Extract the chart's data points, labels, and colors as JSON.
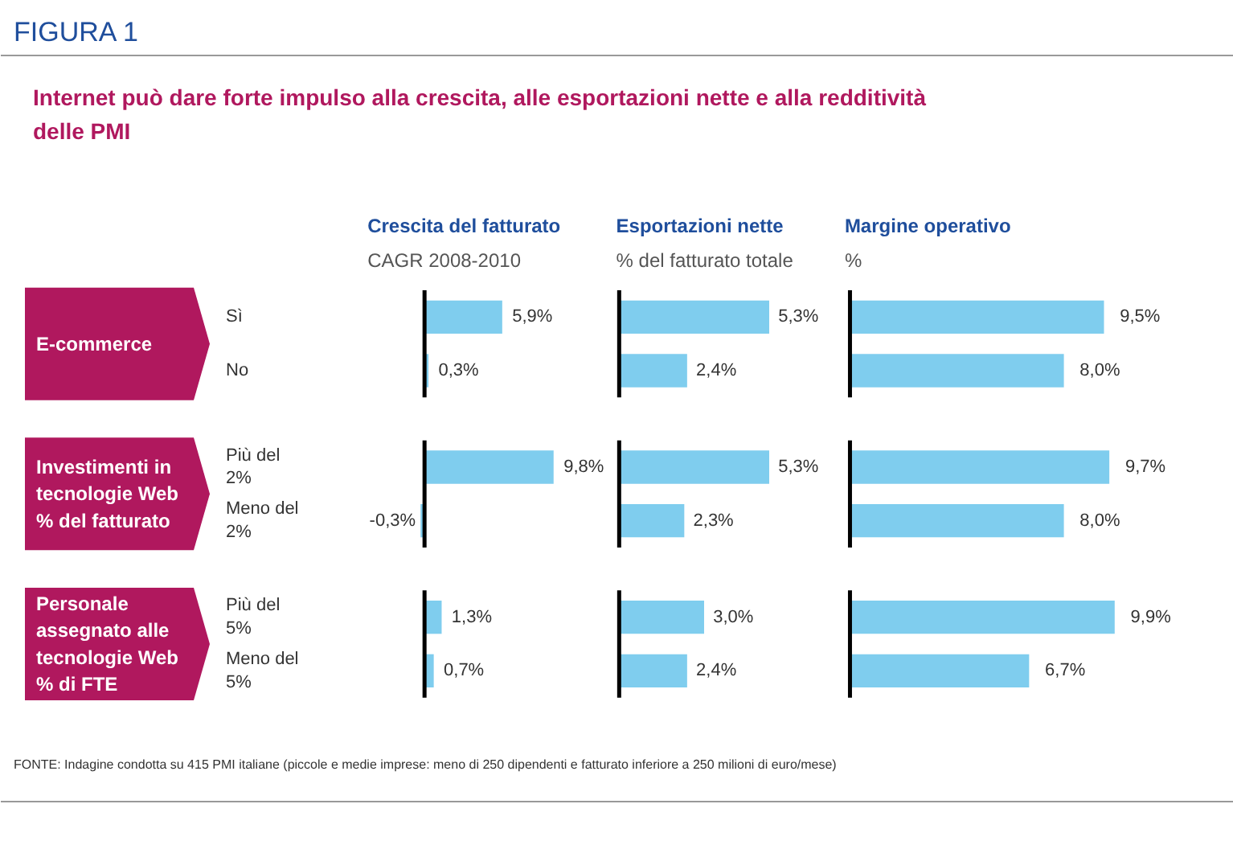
{
  "chart_data": [
    {
      "type": "bar",
      "orientation": "horizontal",
      "title": "Crescita del fatturato",
      "subtitle": "CAGR 2008-2010",
      "categories": [
        "Sì",
        "No",
        "Più del 2%",
        "Meno del 2%",
        "Più del 5%",
        "Meno del 5%"
      ],
      "values": [
        5.9,
        0.3,
        9.8,
        -0.3,
        1.3,
        0.7
      ],
      "value_labels": [
        "5,9%",
        "0,3%",
        "9,8%",
        "-0,3%",
        "1,3%",
        "0,7%"
      ],
      "color": "#7fcdee",
      "ref_lines": [
        {
          "axis": "x",
          "value": 0,
          "color": "#000000"
        }
      ],
      "annotations": [
        "FIGURA 1",
        "Internet può dare forte impulso alla crescita, alle esportazioni nette e alla redditività delle PMI",
        "E-commerce",
        "Investimenti in tecnologie Web % del fatturato",
        "Personale assegnato alle tecnologie Web % di FTE",
        "FONTE: Indagine condotta su 415 PMI italiane (piccole e medie imprese: meno di 250 dipendenti e fatturato inferiore a 250 milioni di euro/mese)"
      ]
    },
    {
      "type": "bar",
      "orientation": "horizontal",
      "title": "Esportazioni nette",
      "subtitle": "% del fatturato totale",
      "categories": [
        "Sì",
        "No",
        "Più del 2%",
        "Meno del 2%",
        "Più del 5%",
        "Meno del 5%"
      ],
      "values": [
        5.3,
        2.4,
        5.3,
        2.3,
        3.0,
        2.4
      ],
      "value_labels": [
        "5,3%",
        "2,4%",
        "5,3%",
        "2,3%",
        "3,0%",
        "2,4%"
      ],
      "color": "#7fcdee",
      "tick_labels": false
    },
    {
      "type": "bar",
      "orientation": "horizontal",
      "title": "Margine operativo",
      "subtitle": "%",
      "categories": [
        "Sì",
        "No",
        "Più del 2%",
        "Meno del 2%",
        "Più del 5%",
        "Meno del 5%"
      ],
      "values": [
        9.5,
        8.0,
        9.7,
        8.0,
        9.9,
        6.7
      ],
      "value_labels": [
        "9,5%",
        "8,0%",
        "9,7%",
        "8,0%",
        "9,9%",
        "6,7%"
      ],
      "color": "#7fcdee",
      "tick_labels": false
    }
  ]
}
